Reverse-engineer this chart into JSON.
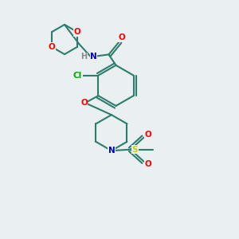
{
  "bg_color": "#eaeff1",
  "bond_color": "#2d7d6e",
  "bond_width": 1.5,
  "atom_colors": {
    "O": "#ff0000",
    "N": "#0000cc",
    "Cl": "#00aa00",
    "S": "#cccc00",
    "H": "#888888",
    "C": "#2d7d6e"
  }
}
